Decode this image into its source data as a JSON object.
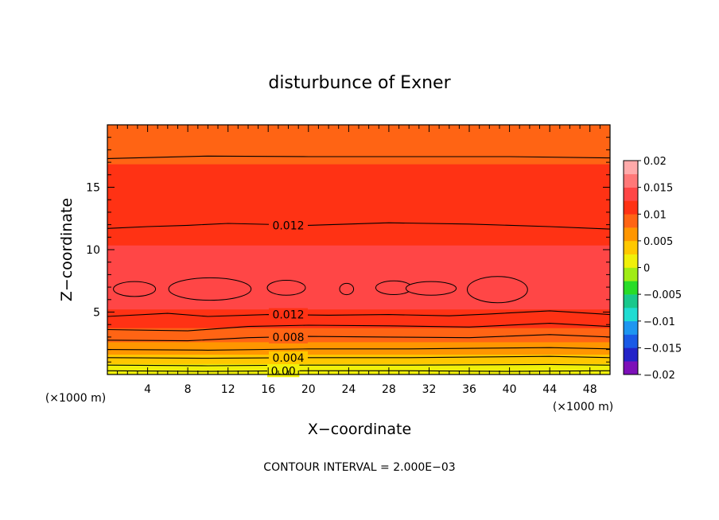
{
  "chart_data": {
    "type": "heatmap",
    "title": "disturbunce of Exner",
    "xlabel": "X−coordinate",
    "ylabel": "Z−coordinate",
    "x_unit_left": "(×1000 m)",
    "x_unit_right": "(×1000 m)",
    "footer": "CONTOUR INTERVAL = 2.000E−03",
    "xlim": [
      0,
      50
    ],
    "ylim": [
      0,
      20
    ],
    "x_ticks": [
      4,
      8,
      12,
      16,
      20,
      24,
      28,
      32,
      36,
      40,
      44,
      48
    ],
    "x_tick_labels": [
      "4",
      "8",
      "12",
      "16",
      "20",
      "24",
      "28",
      "32",
      "36",
      "40",
      "44",
      "48"
    ],
    "y_ticks": [
      5,
      10,
      15
    ],
    "y_tick_labels": [
      "5",
      "10",
      "15"
    ],
    "colorbar": {
      "min": -0.02,
      "max": 0.02,
      "step": 0.0025,
      "labels": [
        "0.02",
        "0.015",
        "0.01",
        "0.005",
        "0",
        "−0.005",
        "−0.01",
        "−0.015",
        "−0.02"
      ],
      "colors": [
        "#7d10b8",
        "#2323c8",
        "#1a5ae6",
        "#1e96f0",
        "#20dcd2",
        "#19c88c",
        "#28dc28",
        "#a0ec14",
        "#f0f00a",
        "#ffc800",
        "#ff9600",
        "#ff6414",
        "#ff3214",
        "#ff4646",
        "#ff7878",
        "#ffaaaa"
      ]
    },
    "contour_interval": 0.002,
    "profile": [
      {
        "z": 0.0,
        "value": 0.0
      },
      {
        "z": 0.5,
        "value": 0.0015
      },
      {
        "z": 1.0,
        "value": 0.003
      },
      {
        "z": 1.5,
        "value": 0.0045
      },
      {
        "z": 2.0,
        "value": 0.006
      },
      {
        "z": 3.0,
        "value": 0.0085
      },
      {
        "z": 4.0,
        "value": 0.0105
      },
      {
        "z": 4.8,
        "value": 0.012
      },
      {
        "z": 6.0,
        "value": 0.0134
      },
      {
        "z": 7.0,
        "value": 0.0138
      },
      {
        "z": 8.0,
        "value": 0.0136
      },
      {
        "z": 9.5,
        "value": 0.0128
      },
      {
        "z": 11.8,
        "value": 0.012
      },
      {
        "z": 14.5,
        "value": 0.0108
      },
      {
        "z": 17.4,
        "value": 0.0098
      },
      {
        "z": 20.0,
        "value": 0.0093
      }
    ],
    "contours": [
      {
        "value": 0.0,
        "label": "0.00",
        "points": [
          [
            0,
            0.3
          ],
          [
            10,
            0.25
          ],
          [
            20,
            0.3
          ],
          [
            30,
            0.3
          ],
          [
            40,
            0.25
          ],
          [
            50,
            0.3
          ]
        ]
      },
      {
        "value": 0.002,
        "label": "",
        "points": [
          [
            0,
            0.75
          ],
          [
            10,
            0.7
          ],
          [
            20,
            0.75
          ],
          [
            30,
            0.75
          ],
          [
            44,
            0.8
          ],
          [
            50,
            0.75
          ]
        ]
      },
      {
        "value": 0.004,
        "label": "0.004",
        "points": [
          [
            0,
            1.35
          ],
          [
            10,
            1.3
          ],
          [
            20,
            1.35
          ],
          [
            30,
            1.35
          ],
          [
            44,
            1.45
          ],
          [
            50,
            1.35
          ]
        ]
      },
      {
        "value": 0.006,
        "label": "",
        "points": [
          [
            0,
            2.0
          ],
          [
            10,
            1.95
          ],
          [
            20,
            2.05
          ],
          [
            30,
            2.05
          ],
          [
            44,
            2.15
          ],
          [
            50,
            2.05
          ]
        ]
      },
      {
        "value": 0.008,
        "label": "0.008",
        "points": [
          [
            0,
            2.75
          ],
          [
            8,
            2.7
          ],
          [
            14,
            2.95
          ],
          [
            20,
            3.05
          ],
          [
            28,
            3.0
          ],
          [
            36,
            2.95
          ],
          [
            44,
            3.2
          ],
          [
            50,
            3.0
          ]
        ]
      },
      {
        "value": 0.01,
        "label": "",
        "points": [
          [
            0,
            3.6
          ],
          [
            8,
            3.5
          ],
          [
            14,
            3.85
          ],
          [
            20,
            3.95
          ],
          [
            28,
            3.9
          ],
          [
            36,
            3.8
          ],
          [
            44,
            4.1
          ],
          [
            50,
            3.85
          ]
        ]
      },
      {
        "value": 0.012,
        "label": "0.012",
        "points": [
          [
            0,
            4.65
          ],
          [
            6,
            4.9
          ],
          [
            10,
            4.65
          ],
          [
            16,
            4.8
          ],
          [
            22,
            4.75
          ],
          [
            28,
            4.8
          ],
          [
            34,
            4.7
          ],
          [
            38,
            4.85
          ],
          [
            44,
            5.1
          ],
          [
            50,
            4.8
          ]
        ]
      },
      {
        "value": 0.012,
        "label": "0.012",
        "points": [
          [
            0,
            11.7
          ],
          [
            4,
            11.85
          ],
          [
            8,
            11.95
          ],
          [
            12,
            12.1
          ],
          [
            20,
            11.95
          ],
          [
            28,
            12.15
          ],
          [
            36,
            12.05
          ],
          [
            44,
            11.85
          ],
          [
            50,
            11.65
          ]
        ]
      },
      {
        "value": 0.01,
        "label": "",
        "points": [
          [
            0,
            17.3
          ],
          [
            10,
            17.5
          ],
          [
            20,
            17.45
          ],
          [
            30,
            17.45
          ],
          [
            40,
            17.45
          ],
          [
            50,
            17.35
          ]
        ]
      }
    ],
    "contour_labels": [
      {
        "text": "0.012",
        "x": 18,
        "z": 11.95
      },
      {
        "text": "0.012",
        "x": 18,
        "z": 4.8
      },
      {
        "text": "0.008",
        "x": 18,
        "z": 3.0
      },
      {
        "text": "0.004",
        "x": 18,
        "z": 1.35
      },
      {
        "text": "0.00",
        "x": 17.5,
        "z": 0.3
      }
    ],
    "closed_contours": [
      {
        "value": 0.014,
        "cx": 2.7,
        "cz": 6.85,
        "rx": 2.1,
        "rz": 0.6
      },
      {
        "value": 0.014,
        "cx": 10.2,
        "cz": 6.85,
        "rx": 4.1,
        "rz": 0.9
      },
      {
        "value": 0.014,
        "cx": 17.8,
        "cz": 6.95,
        "rx": 1.9,
        "rz": 0.6
      },
      {
        "value": 0.014,
        "cx": 23.8,
        "cz": 6.85,
        "rx": 0.7,
        "rz": 0.45
      },
      {
        "value": 0.014,
        "cx": 28.5,
        "cz": 6.95,
        "rx": 1.8,
        "rz": 0.55
      },
      {
        "value": 0.014,
        "cx": 32.2,
        "cz": 6.9,
        "rx": 2.5,
        "rz": 0.55
      },
      {
        "value": 0.014,
        "cx": 38.8,
        "cz": 6.8,
        "rx": 3.0,
        "rz": 1.05
      }
    ]
  }
}
